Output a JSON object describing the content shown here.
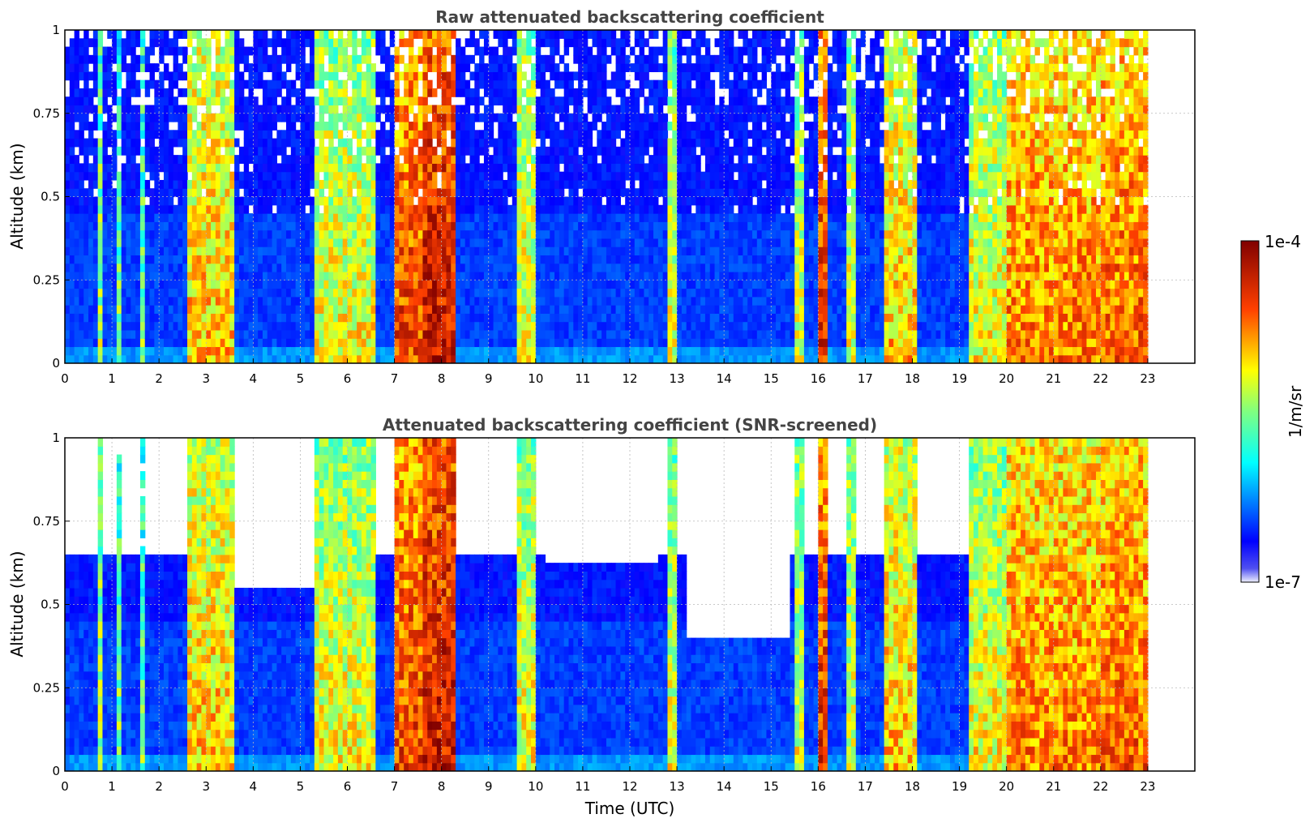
{
  "chart_data": [
    {
      "type": "heatmap",
      "title": "Raw attenuated backscattering coefficient",
      "xlabel": "",
      "ylabel": "Altitude (km)",
      "xlim": [
        0,
        24
      ],
      "ylim": [
        0,
        1
      ],
      "x_ticks": [
        "0",
        "1",
        "2",
        "3",
        "4",
        "5",
        "6",
        "7",
        "8",
        "9",
        "10",
        "11",
        "12",
        "13",
        "14",
        "15",
        "16",
        "17",
        "18",
        "19",
        "20",
        "21",
        "22",
        "23"
      ],
      "y_ticks": [
        "0",
        "0.25",
        "0.5",
        "0.75",
        "1"
      ],
      "grid": true,
      "data_end_time": 23,
      "cloud_columns": [
        {
          "start": 0.7,
          "end": 0.8,
          "level": 0.55
        },
        {
          "start": 1.1,
          "end": 1.2,
          "level": 0.5
        },
        {
          "start": 1.6,
          "end": 1.7,
          "level": 0.5
        },
        {
          "start": 2.6,
          "end": 3.6,
          "level": 0.68
        },
        {
          "start": 5.3,
          "end": 6.6,
          "level": 0.62
        },
        {
          "start": 7.0,
          "end": 7.6,
          "level": 0.82
        },
        {
          "start": 7.6,
          "end": 8.3,
          "level": 0.9
        },
        {
          "start": 9.6,
          "end": 10.0,
          "level": 0.62
        },
        {
          "start": 12.8,
          "end": 13.0,
          "level": 0.6
        },
        {
          "start": 15.5,
          "end": 15.7,
          "level": 0.6
        },
        {
          "start": 16.0,
          "end": 16.2,
          "level": 0.85
        },
        {
          "start": 16.6,
          "end": 16.8,
          "level": 0.6
        },
        {
          "start": 17.4,
          "end": 18.1,
          "level": 0.68
        },
        {
          "start": 19.2,
          "end": 20.0,
          "level": 0.62
        },
        {
          "start": 20.0,
          "end": 22.0,
          "level": 0.75
        },
        {
          "start": 22.0,
          "end": 23.0,
          "level": 0.78
        }
      ]
    },
    {
      "type": "heatmap",
      "title": "Attenuated backscattering coefficient (SNR-screened)",
      "xlabel": "Time (UTC)",
      "ylabel": "Altitude (km)",
      "xlim": [
        0,
        24
      ],
      "ylim": [
        0,
        1
      ],
      "x_ticks": [
        "0",
        "1",
        "2",
        "3",
        "4",
        "5",
        "6",
        "7",
        "8",
        "9",
        "10",
        "11",
        "12",
        "13",
        "14",
        "15",
        "16",
        "17",
        "18",
        "19",
        "20",
        "21",
        "22",
        "23"
      ],
      "y_ticks": [
        "0",
        "0.25",
        "0.5",
        "0.75",
        "1"
      ],
      "grid": true,
      "data_end_time": 23,
      "screened_regions": [
        {
          "start": 2.8,
          "end": 5.3,
          "top": 0.55
        },
        {
          "start": 10.2,
          "end": 12.6,
          "top": 0.62
        },
        {
          "start": 13.2,
          "end": 15.4,
          "top": 0.4
        }
      ]
    }
  ],
  "colorbar": {
    "label": "1/m/sr",
    "min_label": "1e-7",
    "max_label": "1e-4",
    "scale": "log",
    "colormap": "jet"
  }
}
